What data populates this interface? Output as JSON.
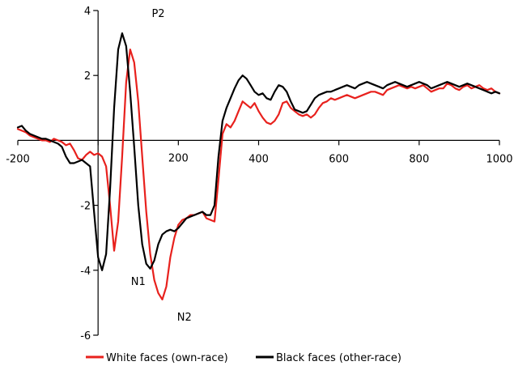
{
  "chart_data": {
    "type": "line",
    "title": "",
    "xlabel": "",
    "ylabel": "",
    "xlim": [
      -200,
      1000
    ],
    "ylim": [
      -6,
      4
    ],
    "x_ticks": [
      -200,
      400,
      600,
      800,
      1000
    ],
    "x_tick_labels": [
      "-200",
      "400",
      "600",
      "800",
      "1000"
    ],
    "x_extra_labels": [
      {
        "x": 200,
        "text": "200"
      }
    ],
    "y_ticks": [
      4,
      2,
      -2,
      -4,
      -6
    ],
    "y_tick_labels": [
      "4",
      "2",
      "-2",
      "-4",
      "-6"
    ],
    "grid": false,
    "legend_position": "bottom",
    "series": [
      {
        "name": "White faces (own-race)",
        "color": "#e8211d",
        "x": [
          -200,
          -190,
          -180,
          -170,
          -160,
          -150,
          -140,
          -130,
          -120,
          -110,
          -100,
          -90,
          -80,
          -70,
          -60,
          -50,
          -40,
          -30,
          -20,
          -10,
          0,
          10,
          20,
          30,
          40,
          50,
          60,
          70,
          80,
          90,
          100,
          110,
          120,
          130,
          140,
          150,
          160,
          170,
          180,
          190,
          200,
          210,
          220,
          230,
          240,
          250,
          260,
          270,
          280,
          290,
          300,
          310,
          320,
          330,
          340,
          350,
          360,
          370,
          380,
          390,
          400,
          410,
          420,
          430,
          440,
          450,
          460,
          470,
          480,
          490,
          500,
          510,
          520,
          530,
          540,
          550,
          560,
          570,
          580,
          590,
          600,
          610,
          620,
          630,
          640,
          650,
          660,
          670,
          680,
          690,
          700,
          710,
          720,
          730,
          740,
          750,
          760,
          770,
          780,
          790,
          800,
          810,
          820,
          830,
          840,
          850,
          860,
          870,
          880,
          890,
          900,
          910,
          920,
          930,
          940,
          950,
          960,
          970,
          980,
          990,
          1000
        ],
        "y": [
          0.35,
          0.3,
          0.25,
          0.15,
          0.1,
          0.05,
          0.0,
          0.0,
          -0.05,
          0.05,
          0.0,
          -0.05,
          -0.15,
          -0.1,
          -0.3,
          -0.55,
          -0.6,
          -0.45,
          -0.35,
          -0.45,
          -0.4,
          -0.5,
          -0.8,
          -2.0,
          -3.4,
          -2.5,
          -0.5,
          1.8,
          2.8,
          2.4,
          1.2,
          -0.5,
          -2.2,
          -3.5,
          -4.3,
          -4.7,
          -4.9,
          -4.5,
          -3.6,
          -3.0,
          -2.6,
          -2.45,
          -2.4,
          -2.3,
          -2.3,
          -2.25,
          -2.2,
          -2.4,
          -2.45,
          -2.5,
          -1.2,
          0.2,
          0.5,
          0.4,
          0.6,
          0.9,
          1.2,
          1.1,
          1.0,
          1.15,
          0.9,
          0.7,
          0.55,
          0.5,
          0.6,
          0.8,
          1.15,
          1.2,
          1.0,
          0.9,
          0.8,
          0.75,
          0.8,
          0.7,
          0.8,
          1.0,
          1.15,
          1.2,
          1.3,
          1.25,
          1.3,
          1.35,
          1.4,
          1.35,
          1.3,
          1.35,
          1.4,
          1.45,
          1.5,
          1.5,
          1.45,
          1.4,
          1.55,
          1.6,
          1.65,
          1.7,
          1.65,
          1.6,
          1.65,
          1.6,
          1.65,
          1.7,
          1.6,
          1.5,
          1.55,
          1.6,
          1.6,
          1.75,
          1.7,
          1.6,
          1.55,
          1.65,
          1.7,
          1.6,
          1.65,
          1.7,
          1.6,
          1.55,
          1.6,
          1.5,
          1.45
        ]
      },
      {
        "name": "Black faces (other-race)",
        "color": "#000000",
        "x": [
          -200,
          -190,
          -180,
          -170,
          -160,
          -150,
          -140,
          -130,
          -120,
          -110,
          -100,
          -90,
          -80,
          -70,
          -60,
          -50,
          -40,
          -30,
          -20,
          -10,
          0,
          10,
          20,
          30,
          40,
          50,
          60,
          70,
          80,
          90,
          100,
          110,
          120,
          130,
          140,
          150,
          160,
          170,
          180,
          190,
          200,
          210,
          220,
          230,
          240,
          250,
          260,
          270,
          280,
          290,
          300,
          310,
          320,
          330,
          340,
          350,
          360,
          370,
          380,
          390,
          400,
          410,
          420,
          430,
          440,
          450,
          460,
          470,
          480,
          490,
          500,
          510,
          520,
          530,
          540,
          550,
          560,
          570,
          580,
          590,
          600,
          610,
          620,
          630,
          640,
          650,
          660,
          670,
          680,
          690,
          700,
          710,
          720,
          730,
          740,
          750,
          760,
          770,
          780,
          790,
          800,
          810,
          820,
          830,
          840,
          850,
          860,
          870,
          880,
          890,
          900,
          910,
          920,
          930,
          940,
          950,
          960,
          970,
          980,
          990,
          1000
        ],
        "y": [
          0.4,
          0.45,
          0.3,
          0.2,
          0.15,
          0.1,
          0.05,
          0.05,
          0.0,
          -0.05,
          -0.1,
          -0.2,
          -0.5,
          -0.7,
          -0.7,
          -0.65,
          -0.6,
          -0.7,
          -0.8,
          -2.2,
          -3.6,
          -4.0,
          -3.5,
          -1.5,
          1.0,
          2.8,
          3.3,
          2.9,
          1.5,
          -0.2,
          -2.0,
          -3.2,
          -3.8,
          -3.95,
          -3.7,
          -3.2,
          -2.9,
          -2.8,
          -2.75,
          -2.8,
          -2.7,
          -2.55,
          -2.4,
          -2.35,
          -2.3,
          -2.25,
          -2.2,
          -2.3,
          -2.3,
          -2.0,
          -0.5,
          0.6,
          1.0,
          1.3,
          1.6,
          1.85,
          2.0,
          1.9,
          1.7,
          1.5,
          1.4,
          1.45,
          1.3,
          1.25,
          1.5,
          1.7,
          1.65,
          1.5,
          1.2,
          0.95,
          0.9,
          0.85,
          0.9,
          1.1,
          1.3,
          1.4,
          1.45,
          1.5,
          1.5,
          1.55,
          1.6,
          1.65,
          1.7,
          1.65,
          1.6,
          1.7,
          1.75,
          1.8,
          1.75,
          1.7,
          1.65,
          1.6,
          1.7,
          1.75,
          1.8,
          1.75,
          1.7,
          1.65,
          1.7,
          1.75,
          1.8,
          1.75,
          1.7,
          1.6,
          1.65,
          1.7,
          1.75,
          1.8,
          1.75,
          1.7,
          1.65,
          1.7,
          1.75,
          1.7,
          1.65,
          1.6,
          1.55,
          1.5,
          1.45,
          1.5,
          1.45
        ]
      }
    ],
    "annotations": [
      {
        "text": "P2",
        "x": 150,
        "y": 3.8
      },
      {
        "text": "N1",
        "x": 100,
        "y": -4.45
      },
      {
        "text": "N2",
        "x": 215,
        "y": -5.55
      }
    ]
  }
}
